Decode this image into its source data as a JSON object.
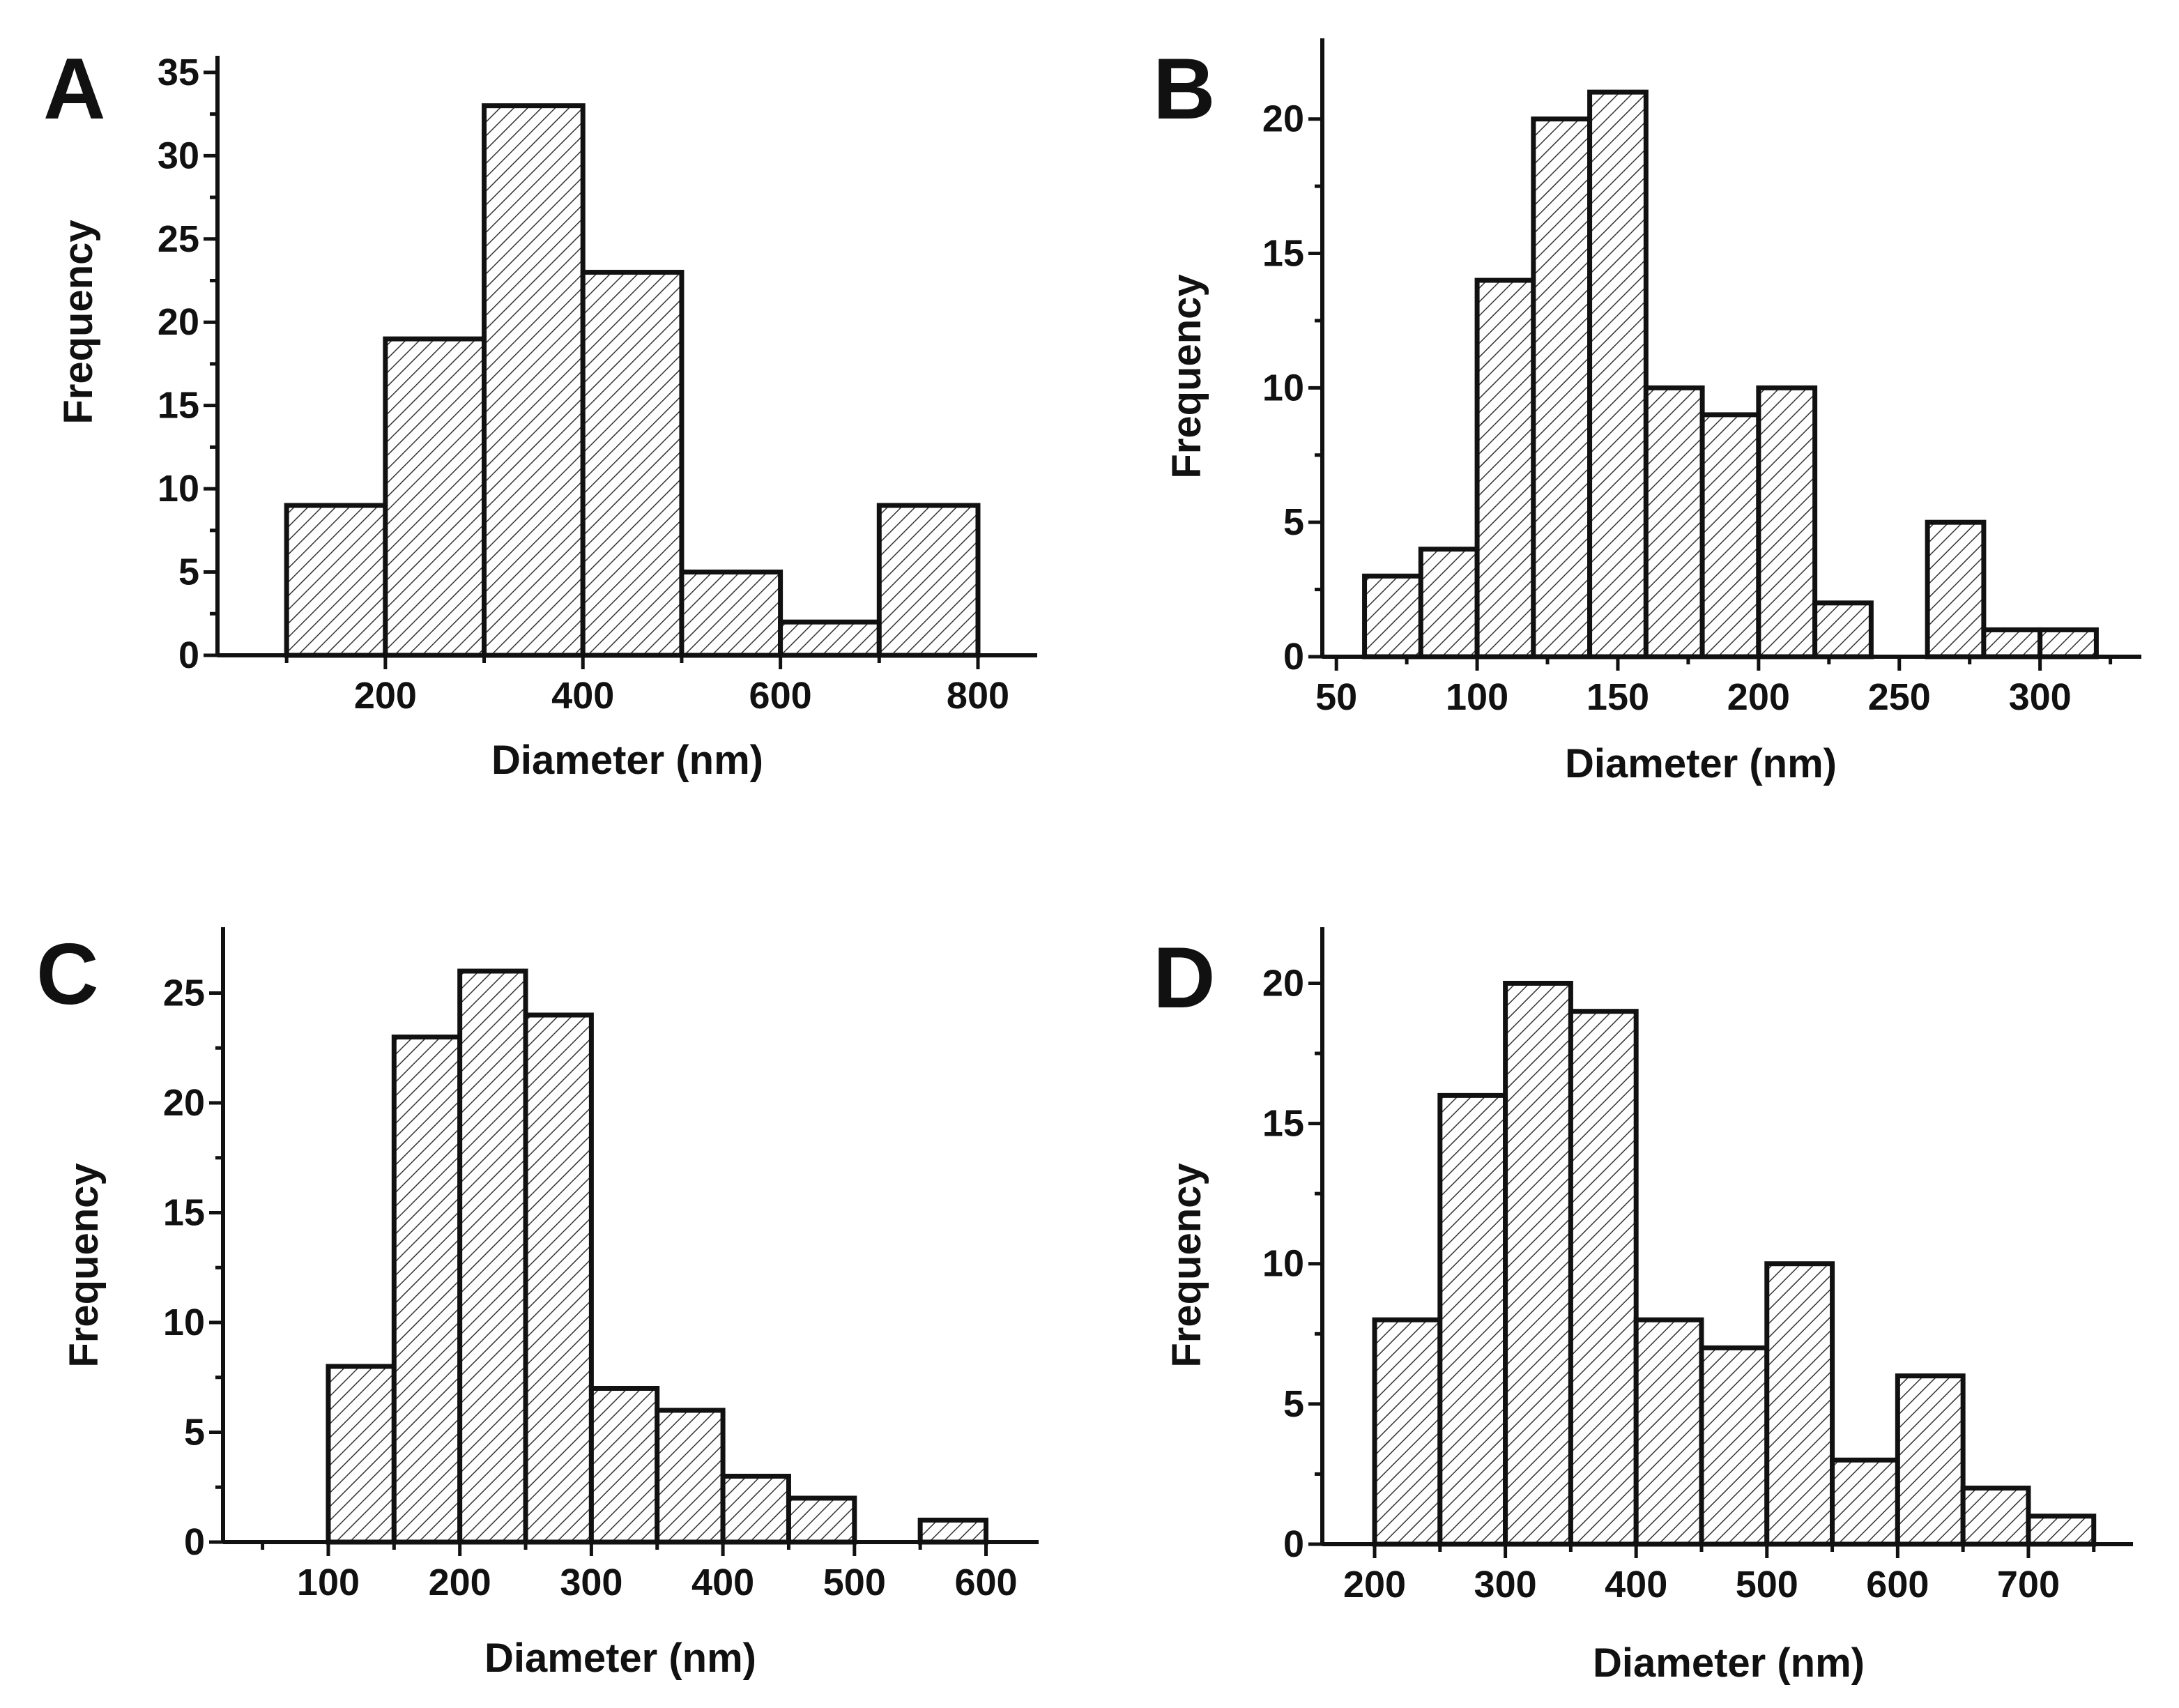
{
  "chart_data": [
    {
      "panel": "A",
      "type": "bar",
      "title": "",
      "xlabel": "Diameter (nm)",
      "ylabel": "Frequency",
      "xlim": [
        30,
        860
      ],
      "ylim": [
        0,
        36
      ],
      "x_ticks": [
        200,
        400,
        600,
        800
      ],
      "x_minor_ticks": [
        100,
        300,
        500,
        700
      ],
      "y_ticks": [
        0,
        5,
        10,
        15,
        20,
        25,
        30,
        35
      ],
      "bins": [
        [
          100,
          200
        ],
        [
          200,
          300
        ],
        [
          300,
          400
        ],
        [
          400,
          500
        ],
        [
          500,
          600
        ],
        [
          600,
          700
        ],
        [
          700,
          800
        ]
      ],
      "values": [
        9,
        19,
        33,
        23,
        5,
        2,
        9
      ]
    },
    {
      "panel": "B",
      "type": "bar",
      "title": "",
      "xlabel": "Diameter (nm)",
      "ylabel": "Frequency",
      "xlim": [
        45,
        336
      ],
      "ylim": [
        0,
        23
      ],
      "x_ticks": [
        50,
        100,
        150,
        200,
        250,
        300
      ],
      "x_minor_ticks": [
        75,
        125,
        175,
        225,
        275,
        325
      ],
      "y_ticks": [
        0,
        5,
        10,
        15,
        20
      ],
      "bins": [
        [
          60,
          80
        ],
        [
          80,
          100
        ],
        [
          100,
          120
        ],
        [
          120,
          140
        ],
        [
          140,
          160
        ],
        [
          160,
          180
        ],
        [
          180,
          200
        ],
        [
          200,
          220
        ],
        [
          220,
          240
        ],
        [
          260,
          280
        ],
        [
          280,
          300
        ],
        [
          300,
          320
        ]
      ],
      "values": [
        3,
        4,
        14,
        20,
        21,
        10,
        9,
        10,
        2,
        5,
        1,
        1
      ]
    },
    {
      "panel": "C",
      "type": "bar",
      "title": "",
      "xlabel": "Diameter (nm)",
      "ylabel": "Frequency",
      "xlim": [
        20,
        640
      ],
      "ylim": [
        0,
        28
      ],
      "x_ticks": [
        100,
        200,
        300,
        400,
        500,
        600
      ],
      "x_minor_ticks": [
        50,
        150,
        250,
        350,
        450,
        550
      ],
      "y_ticks": [
        0,
        5,
        10,
        15,
        20,
        25
      ],
      "bins": [
        [
          100,
          150
        ],
        [
          150,
          200
        ],
        [
          200,
          250
        ],
        [
          250,
          300
        ],
        [
          300,
          350
        ],
        [
          350,
          400
        ],
        [
          400,
          450
        ],
        [
          450,
          500
        ],
        [
          550,
          600
        ]
      ],
      "values": [
        8,
        23,
        26,
        24,
        7,
        6,
        3,
        2,
        1
      ]
    },
    {
      "panel": "D",
      "type": "bar",
      "title": "",
      "xlabel": "Diameter (nm)",
      "ylabel": "Frequency",
      "xlim": [
        160,
        780
      ],
      "ylim": [
        0,
        22
      ],
      "x_ticks": [
        200,
        300,
        400,
        500,
        600,
        700
      ],
      "x_minor_ticks": [
        250,
        350,
        450,
        550,
        650,
        750
      ],
      "y_ticks": [
        0,
        5,
        10,
        15,
        20
      ],
      "bins": [
        [
          200,
          250
        ],
        [
          250,
          300
        ],
        [
          300,
          350
        ],
        [
          350,
          400
        ],
        [
          400,
          450
        ],
        [
          450,
          500
        ],
        [
          500,
          550
        ],
        [
          550,
          600
        ],
        [
          600,
          650
        ],
        [
          650,
          700
        ],
        [
          700,
          750
        ]
      ],
      "values": [
        8,
        16,
        20,
        19,
        8,
        7,
        10,
        3,
        6,
        2,
        1
      ]
    }
  ]
}
